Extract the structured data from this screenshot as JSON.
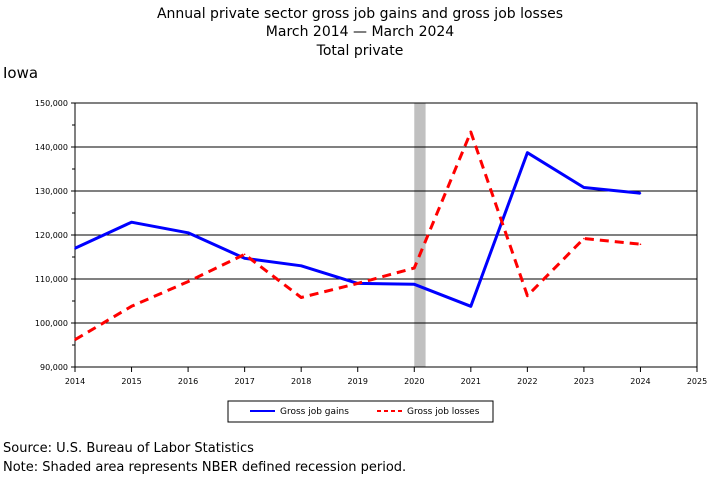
{
  "header": {
    "title_line1": "Annual private sector gross job gains and gross job losses",
    "title_line2": "March 2014 — March 2024",
    "title_line3": "Total private",
    "region": "Iowa"
  },
  "footer": {
    "source": "Source: U.S. Bureau of Labor Statistics",
    "note": "Note: Shaded area represents NBER defined recession period."
  },
  "colors": {
    "gains": "#0000ff",
    "losses": "#ff0000",
    "recession": "#c0c0c0",
    "grid": "#000000"
  },
  "chart_data": {
    "type": "line",
    "title": "Annual private sector gross job gains and gross job losses",
    "xlim": [
      2014,
      2025
    ],
    "ylim": [
      90000,
      150000
    ],
    "x_ticks": [
      "2014",
      "2015",
      "2016",
      "2017",
      "2018",
      "2019",
      "2020",
      "2021",
      "2022",
      "2023",
      "2024",
      "2025"
    ],
    "y_ticks": [
      "90,000",
      "100,000",
      "110,000",
      "120,000",
      "130,000",
      "140,000",
      "150,000"
    ],
    "y_tick_values": [
      90000,
      100000,
      110000,
      120000,
      130000,
      140000,
      150000
    ],
    "grid": true,
    "legend_position": "bottom",
    "recession_shading": [
      2020.0,
      2020.2
    ],
    "series": [
      {
        "name": "Gross job gains",
        "style": "solid",
        "x": [
          2014,
          2015,
          2016,
          2017,
          2018,
          2019,
          2020,
          2021,
          2022,
          2023,
          2024
        ],
        "values": [
          117000,
          122900,
          120500,
          114700,
          113000,
          109000,
          108800,
          103800,
          138700,
          130800,
          129500
        ]
      },
      {
        "name": "Gross job losses",
        "style": "dashed",
        "x": [
          2014,
          2015,
          2016,
          2017,
          2018,
          2019,
          2020,
          2021,
          2022,
          2023,
          2024
        ],
        "values": [
          96200,
          103800,
          109400,
          115600,
          105800,
          109000,
          112500,
          143400,
          106200,
          119200,
          117900
        ]
      }
    ]
  }
}
